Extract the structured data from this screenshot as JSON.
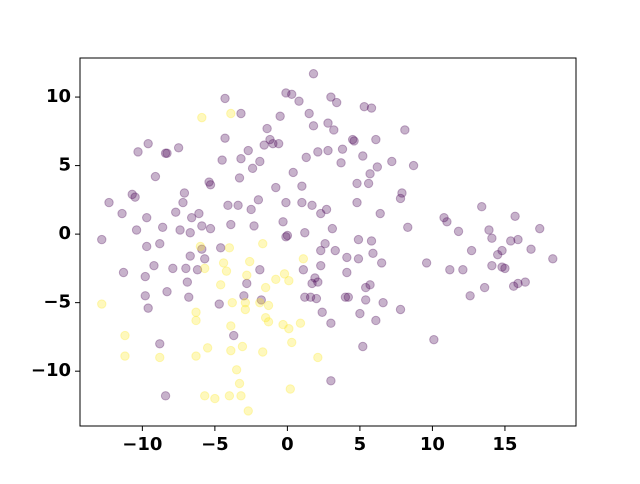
{
  "chart_data": {
    "type": "scatter",
    "xlim": [
      -14.3,
      19.9
    ],
    "ylim": [
      -14.0,
      12.85
    ],
    "xticks": [
      {
        "value": -10,
        "label": "−10"
      },
      {
        "value": -5,
        "label": "−5"
      },
      0,
      5,
      10,
      15
    ],
    "yticks": [
      {
        "value": -10,
        "label": "−10"
      },
      {
        "value": -5,
        "label": "−5"
      },
      0,
      5,
      10
    ],
    "grid": false,
    "alpha": 0.3,
    "series": [
      {
        "color": "#440154",
        "x": [
          -12.8,
          -12.3,
          -11.4,
          -11.3,
          -10.7,
          -10.5,
          -10.4,
          -10.3,
          -9.6,
          -9.7,
          -9.7,
          -9.8,
          -9.8,
          -9.6,
          -9.2,
          -9.1,
          -8.8,
          -8.6,
          -8.4,
          -8.3,
          -8.3,
          -8.4,
          -8.8,
          -7.9,
          -7.7,
          -7.5,
          -7.4,
          -7.2,
          -7.1,
          -7.0,
          -6.9,
          -6.8,
          -6.7,
          -6.7,
          -6.6,
          -6.2,
          -6.1,
          -5.9,
          -5.9,
          -5.7,
          -5.4,
          -5.3,
          -5.3,
          -4.7,
          -4.6,
          -4.5,
          -4.3,
          -4.3,
          -4.1,
          -3.9,
          -3.7,
          -3.4,
          -3.3,
          -3.2,
          -3.2,
          -3.0,
          -2.8,
          -2.7,
          -2.5,
          -2.4,
          -2.3,
          -2.0,
          -1.9,
          -1.9,
          -1.8,
          -1.6,
          -1.4,
          -1.2,
          -1.0,
          -0.8,
          -0.6,
          -0.5,
          -0.3,
          -0.1,
          -0.1,
          -0.1,
          0.0,
          0.3,
          0.4,
          0.8,
          1.0,
          1.0,
          1.1,
          1.2,
          1.2,
          1.3,
          1.5,
          1.6,
          1.7,
          1.7,
          1.8,
          1.9,
          2.0,
          2.1,
          2.1,
          2.3,
          2.3,
          2.3,
          2.4,
          2.6,
          2.7,
          2.8,
          2.8,
          3.0,
          3.0,
          3.0,
          3.1,
          3.2,
          3.3,
          3.4,
          3.7,
          3.8,
          4.0,
          4.1,
          4.1,
          4.2,
          4.5,
          4.6,
          4.8,
          4.8,
          4.9,
          4.9,
          5.0,
          5.2,
          5.2,
          5.3,
          5.4,
          5.4,
          5.6,
          5.7,
          5.7,
          5.8,
          5.8,
          5.9,
          6.1,
          6.1,
          6.2,
          6.4,
          6.5,
          6.6,
          7.2,
          7.8,
          7.9,
          8.1,
          8.3,
          7.8,
          8.7,
          9.6,
          10.1,
          10.8,
          11.0,
          11.2,
          11.8,
          12.1,
          12.6,
          12.7,
          13.4,
          13.6,
          13.9,
          14.1,
          14.1,
          14.5,
          14.8,
          14.8,
          15.0,
          15.4,
          15.6,
          15.7,
          15.9,
          15.9,
          16.4,
          16.8,
          17.4,
          18.3,
          1.8
        ],
        "values": [
          -0.4,
          2.3,
          1.5,
          -2.8,
          2.9,
          2.7,
          0.3,
          6.0,
          6.6,
          1.2,
          -0.9,
          -3.1,
          -4.5,
          -5.4,
          -2.3,
          4.2,
          -0.7,
          0.5,
          5.9,
          5.9,
          -4.2,
          -11.8,
          -8.0,
          -2.5,
          1.6,
          6.3,
          0.3,
          2.3,
          3.0,
          -2.5,
          -3.5,
          -4.6,
          -1.6,
          0.1,
          1.2,
          -2.6,
          1.5,
          0.6,
          -1.1,
          -1.8,
          3.8,
          3.6,
          0.4,
          -5.1,
          -1.0,
          5.4,
          7.0,
          9.9,
          2.1,
          0.7,
          -7.4,
          2.1,
          4.1,
          5.5,
          8.8,
          -4.5,
          -3.6,
          6.1,
          1.8,
          4.8,
          0.6,
          2.5,
          5.3,
          -2.6,
          -4.8,
          6.5,
          7.7,
          6.9,
          6.6,
          3.4,
          6.6,
          8.6,
          0.9,
          -0.2,
          2.3,
          10.3,
          -0.1,
          10.2,
          4.5,
          9.7,
          3.5,
          2.3,
          -2.6,
          -4.6,
          0.1,
          5.6,
          8.8,
          -4.6,
          2.1,
          -3.6,
          7.9,
          -3.2,
          -4.7,
          6.0,
          -3.5,
          1.5,
          -2.3,
          -1.2,
          -5.7,
          -0.7,
          1.8,
          6.1,
          8.1,
          10.0,
          -10.7,
          -6.5,
          0.4,
          7.6,
          -1.2,
          9.6,
          5.2,
          6.2,
          -4.6,
          -2.8,
          -1.7,
          -4.6,
          6.9,
          6.8,
          3.7,
          2.3,
          -0.4,
          -1.8,
          -5.8,
          5.7,
          -8.2,
          9.3,
          -3.9,
          -4.8,
          3.7,
          4.4,
          -3.7,
          9.2,
          -0.5,
          -1.4,
          6.9,
          -6.3,
          4.9,
          1.5,
          -2.1,
          -5.0,
          5.3,
          2.6,
          3.0,
          7.6,
          0.5,
          -5.5,
          5.0,
          -2.1,
          -7.7,
          1.2,
          0.9,
          -2.6,
          0.2,
          -2.6,
          -4.5,
          -1.2,
          2.0,
          -3.9,
          0.3,
          -2.3,
          -0.3,
          -1.5,
          -1.2,
          -2.4,
          -2.5,
          -0.5,
          -3.8,
          1.3,
          -0.4,
          -3.6,
          -3.5,
          -1.1,
          0.4,
          -1.8,
          11.7
        ]
      },
      {
        "color": "#fde725",
        "x": [
          -12.8,
          -11.2,
          -11.2,
          -8.8,
          -6.3,
          -6.3,
          -6.3,
          -5.9,
          -5.7,
          -5.5,
          -6.0,
          -5.7,
          -5.0,
          -4.6,
          -4.4,
          -4.2,
          -4.0,
          -3.8,
          -4.0,
          -3.9,
          -3.9,
          -3.5,
          -3.3,
          -3.2,
          -3.1,
          -2.9,
          -2.9,
          -2.8,
          -2.7,
          -2.6,
          -1.9,
          -1.7,
          -1.7,
          -1.5,
          -1.5,
          -1.3,
          -1.3,
          -0.8,
          -0.3,
          -0.2,
          0.1,
          0.1,
          0.2,
          0.3,
          0.9,
          1.1,
          2.1,
          -3.9
        ],
        "values": [
          -5.1,
          -7.4,
          -8.9,
          -9.0,
          -8.9,
          -6.3,
          -5.7,
          8.5,
          -11.8,
          -8.3,
          -0.9,
          -2.5,
          -12.0,
          -3.7,
          -2.1,
          -2.7,
          -1.0,
          -5.0,
          -11.8,
          -8.5,
          -6.7,
          -9.9,
          -10.9,
          -11.8,
          -8.2,
          -5.0,
          -5.5,
          -3.0,
          -12.9,
          -2.0,
          -5.0,
          -8.6,
          -0.7,
          -6.1,
          -3.9,
          -6.4,
          -5.2,
          -3.3,
          -6.6,
          -2.9,
          -6.9,
          -3.4,
          -11.3,
          -7.9,
          -6.5,
          -1.8,
          -9.0,
          8.8
        ]
      }
    ]
  }
}
